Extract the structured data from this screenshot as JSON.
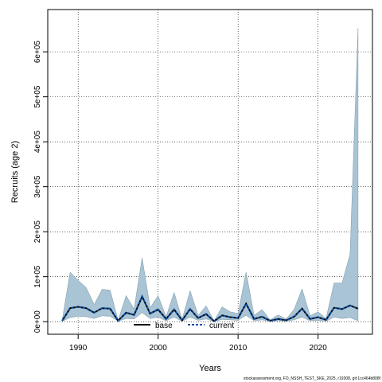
{
  "chart_data": {
    "type": "area",
    "xlabel": "Years",
    "ylabel": "Recruits (age 2)",
    "xlim": [
      1986.2,
      2026.8
    ],
    "ylim": [
      -28000,
      694000
    ],
    "x_ticks": [
      1990,
      2000,
      2010,
      2020
    ],
    "x_tick_labels": [
      "1990",
      "2000",
      "2010",
      "2020"
    ],
    "y_ticks": [
      0,
      100000,
      200000,
      300000,
      400000,
      500000,
      600000
    ],
    "y_tick_labels": [
      "0e+00",
      "1e+05",
      "2e+05",
      "3e+05",
      "4e+05",
      "5e+05",
      "6e+05"
    ],
    "grid": true,
    "legend": {
      "position": "bottom-center",
      "entries": [
        "base",
        "current"
      ]
    },
    "x": [
      1988,
      1989,
      1990,
      1991,
      1992,
      1993,
      1994,
      1995,
      1996,
      1997,
      1998,
      1999,
      2000,
      2001,
      2002,
      2003,
      2004,
      2005,
      2006,
      2007,
      2008,
      2009,
      2010,
      2011,
      2012,
      2013,
      2014,
      2015,
      2016,
      2017,
      2018,
      2019,
      2020,
      2021,
      2022,
      2023,
      2024,
      2025
    ],
    "series": [
      {
        "name": "base",
        "style": "solid",
        "color": "#000000",
        "values": [
          2000,
          30000,
          33000,
          30000,
          20000,
          30000,
          29000,
          2000,
          20000,
          15000,
          56000,
          18000,
          27000,
          6000,
          27000,
          3000,
          28000,
          8000,
          17000,
          1000,
          14000,
          10000,
          8000,
          40000,
          6000,
          11000,
          2000,
          6000,
          3000,
          11000,
          29000,
          6000,
          10000,
          4000,
          31000,
          28000,
          36000,
          29000
        ]
      },
      {
        "name": "current",
        "style": "dashed",
        "color": "#0b4ea2",
        "values": [
          2000,
          30000,
          33000,
          30000,
          20000,
          30000,
          29000,
          2000,
          20000,
          15000,
          56000,
          18000,
          27000,
          6000,
          27000,
          3000,
          28000,
          8000,
          17000,
          1000,
          14000,
          10000,
          8000,
          40000,
          6000,
          11000,
          2000,
          6000,
          3000,
          11000,
          29000,
          6000,
          10000,
          4000,
          31000,
          28000,
          36000,
          29000
        ]
      }
    ],
    "interval": {
      "color": "#a9c4d4",
      "upper": [
        3000,
        110000,
        92000,
        76000,
        38000,
        72000,
        70000,
        3000,
        58000,
        28000,
        142000,
        31000,
        58000,
        11000,
        65000,
        5000,
        69000,
        14000,
        35000,
        2000,
        33000,
        22000,
        18000,
        110000,
        14000,
        27000,
        4000,
        15000,
        6000,
        27000,
        73000,
        13000,
        22000,
        7000,
        86000,
        86000,
        150000,
        652000
      ],
      "lower": [
        1000,
        9000,
        12000,
        11000,
        7000,
        13000,
        12000,
        1000,
        7000,
        6000,
        20000,
        7000,
        10000,
        2000,
        10000,
        1000,
        10000,
        3000,
        6000,
        500,
        5000,
        4000,
        3000,
        14000,
        2000,
        4000,
        800,
        2000,
        1000,
        4000,
        10000,
        2000,
        3000,
        1000,
        10000,
        7000,
        9000,
        2000
      ]
    }
  },
  "footer": "stockassessment.org, FO_NSSH_TEST_SKE_2025, r19308, git:1cc464b808f"
}
